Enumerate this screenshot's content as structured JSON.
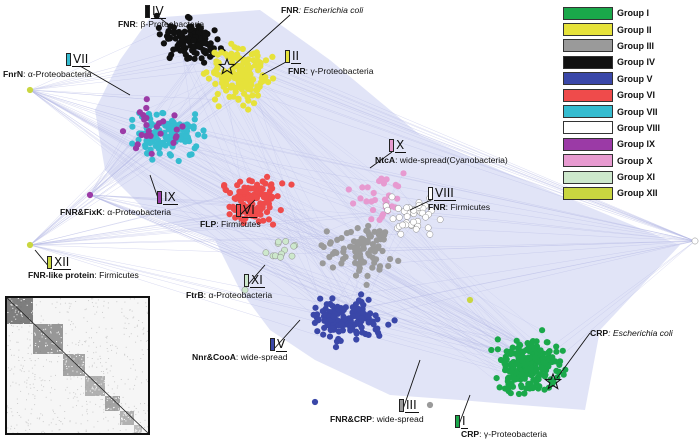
{
  "labels": {
    "fnr_beta": {
      "protein": "FNR",
      "desc": ": β-Proteobacteria",
      "italic": false
    },
    "fnr_ecoli": {
      "protein": "FNR",
      "desc": ": Escherichia coli",
      "italic": true
    },
    "fnr_gamma": {
      "protein": "FNR",
      "desc": ": γ-Proteobacteria",
      "italic": false
    },
    "fnrn_alpha": {
      "protein": "FnrN",
      "desc": ": α-Proteobacteria",
      "italic": false
    },
    "ntca": {
      "protein": "NtcA",
      "desc": ": wide-spread(Cyanobacteria)",
      "italic": false
    },
    "fnr_firmicutes": {
      "protein": "FNR",
      "desc": ": Firmicutes",
      "italic": false
    },
    "fnr_fixk": {
      "protein": "FNR&FixK",
      "desc": ": α-Proteobacteria",
      "italic": false
    },
    "flp": {
      "protein": "FLP",
      "desc": ": Firmicutes",
      "italic": false
    },
    "fnr_like": {
      "protein": "FNR-like protein",
      "desc": ": Firmicutes",
      "italic": false
    },
    "ftrb": {
      "protein": "FtrB",
      "desc": ": α-Proteobacteria",
      "italic": false
    },
    "nnr_cooa": {
      "protein": "Nnr&CooA",
      "desc": ": wide-spread",
      "italic": false
    },
    "crp_ecoli": {
      "protein": "CRP",
      "desc": ": Escherichia coli",
      "italic": true
    },
    "fnr_crp": {
      "protein": "FNR&CRP",
      "desc": ": wide-spread",
      "italic": false
    },
    "crp_gamma": {
      "protein": "CRP",
      "desc": ": γ-Proteobacteria",
      "italic": false
    }
  },
  "tags": {
    "IV": {
      "numeral": "IV",
      "color": "#111111"
    },
    "II": {
      "numeral": "II",
      "color": "#e6e23a"
    },
    "VII": {
      "numeral": "VII",
      "color": "#35bcd0"
    },
    "X": {
      "numeral": "X",
      "color": "#e79ad0"
    },
    "VIII": {
      "numeral": "VIII",
      "color": "#ffffff"
    },
    "IX": {
      "numeral": "IX",
      "color": "#9b3aa6"
    },
    "VI": {
      "numeral": "VI",
      "color": "#ef4b4b"
    },
    "XII": {
      "numeral": "XII",
      "color": "#c9d640"
    },
    "XI": {
      "numeral": "XI",
      "color": "#cde8cc"
    },
    "V": {
      "numeral": "V",
      "color": "#3a47a8"
    },
    "III": {
      "numeral": "III",
      "color": "#9a9a9a"
    },
    "I": {
      "numeral": "I",
      "color": "#1aa84a"
    }
  },
  "legend": [
    {
      "name": "Group I",
      "color": "#1aa84a"
    },
    {
      "name": "Group II",
      "color": "#e6e23a"
    },
    {
      "name": "Group III",
      "color": "#9a9a9a"
    },
    {
      "name": "Group IV",
      "color": "#111111"
    },
    {
      "name": "Group V",
      "color": "#3a47a8"
    },
    {
      "name": "Group VI",
      "color": "#ef4b4b"
    },
    {
      "name": "Group VII",
      "color": "#35bcd0"
    },
    {
      "name": "Group VIII",
      "color": "#ffffff"
    },
    {
      "name": "Group IX",
      "color": "#9b3aa6"
    },
    {
      "name": "Group X",
      "color": "#e79ad0"
    },
    {
      "name": "Group XI",
      "color": "#cde8cc"
    },
    {
      "name": "Group XII",
      "color": "#c9d640"
    }
  ],
  "colors": {
    "edge": "#b9bde6",
    "hull": "#c9cdf0"
  }
}
